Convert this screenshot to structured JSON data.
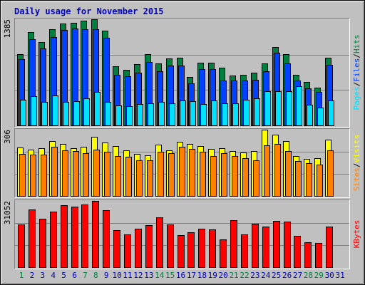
{
  "chart_data": [
    {
      "type": "bar",
      "title": "Daily usage for November 2015",
      "ylim": [
        0,
        1385
      ],
      "yticks": [
        1385
      ],
      "legend_separator": "/",
      "series": [
        {
          "name": "Hits",
          "color": "#008040",
          "values": [
            930,
            1218,
            1088,
            1255,
            1329,
            1339,
            1366,
            1385,
            1236,
            771,
            725,
            800,
            930,
            809,
            874,
            883,
            632,
            818,
            818,
            753,
            651,
            660,
            688,
            809,
            1022,
            930,
            660,
            567,
            493,
            883,
            null
          ]
        },
        {
          "name": "Files",
          "color": "#0040ff",
          "values": [
            864,
            1125,
            1004,
            1153,
            1245,
            1264,
            1255,
            1255,
            1143,
            660,
            641,
            688,
            827,
            706,
            781,
            781,
            548,
            734,
            734,
            586,
            586,
            586,
            595,
            706,
            948,
            809,
            586,
            483,
            437,
            790,
            null
          ]
        },
        {
          "name": "Pages",
          "color": "#00e0ff",
          "values": [
            335,
            381,
            307,
            390,
            307,
            316,
            353,
            437,
            307,
            260,
            251,
            279,
            288,
            307,
            288,
            325,
            316,
            279,
            325,
            288,
            288,
            335,
            353,
            446,
            446,
            446,
            511,
            270,
            232,
            325,
            null
          ]
        }
      ]
    },
    {
      "type": "bar",
      "ylim": [
        0,
        306
      ],
      "yticks": [
        306
      ],
      "legend_separator": "/",
      "series": [
        {
          "name": "Visits",
          "color": "#ffff00",
          "values": [
            223,
            213,
            220,
            253,
            239,
            220,
            226,
            273,
            246,
            230,
            210,
            193,
            186,
            236,
            210,
            249,
            239,
            230,
            216,
            220,
            206,
            200,
            206,
            306,
            283,
            253,
            183,
            170,
            176,
            259,
            null
          ]
        },
        {
          "name": "Sites",
          "color": "#ff8000",
          "values": [
            193,
            190,
            190,
            226,
            210,
            206,
            196,
            213,
            203,
            183,
            180,
            166,
            166,
            203,
            196,
            226,
            216,
            203,
            183,
            196,
            183,
            173,
            166,
            233,
            239,
            206,
            160,
            150,
            146,
            210,
            null
          ]
        }
      ]
    },
    {
      "type": "bar",
      "ylim": [
        0,
        31052
      ],
      "yticks": [
        31052
      ],
      "categories": [
        1,
        2,
        3,
        4,
        5,
        6,
        7,
        8,
        9,
        10,
        11,
        12,
        13,
        14,
        15,
        16,
        17,
        18,
        19,
        20,
        21,
        22,
        23,
        24,
        25,
        26,
        27,
        28,
        29,
        30,
        31
      ],
      "category_colors": [
        "#008040",
        "#0000c0",
        "#0000c0",
        "#0000c0",
        "#0000c0",
        "#0000c0",
        "#008040",
        "#008040",
        "#0000c0",
        "#0000c0",
        "#0000c0",
        "#0000c0",
        "#0000c0",
        "#008040",
        "#008040",
        "#0000c0",
        "#0000c0",
        "#0000c0",
        "#0000c0",
        "#0000c0",
        "#008040",
        "#008040",
        "#0000c0",
        "#0000c0",
        "#0000c0",
        "#0000c0",
        "#0000c0",
        "#008040",
        "#008040",
        "#0000c0",
        "#0000c0"
      ],
      "series": [
        {
          "name": "KBytes",
          "color": "#ff0000",
          "values": [
            19914,
            27002,
            22614,
            25989,
            29027,
            28352,
            29364,
            31052,
            26665,
            17214,
            15526,
            17889,
            19577,
            23289,
            19914,
            15189,
            16201,
            17889,
            17551,
            13163,
            21939,
            15526,
            20251,
            18901,
            21602,
            21264,
            14851,
            11813,
            11476,
            18901,
            null
          ]
        }
      ]
    }
  ]
}
